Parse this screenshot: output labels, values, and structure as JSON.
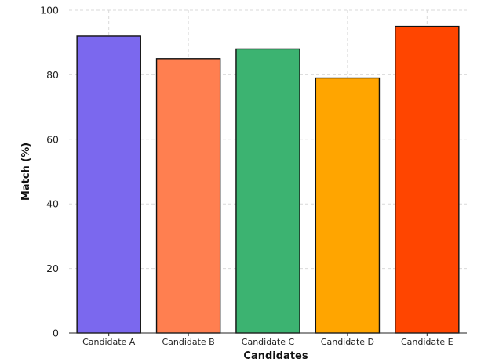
{
  "chart_data": {
    "type": "bar",
    "title": "",
    "xlabel": "Candidates",
    "ylabel": "Match (%)",
    "categories": [
      "Candidate A",
      "Candidate B",
      "Candidate C",
      "Candidate D",
      "Candidate E"
    ],
    "values": [
      92,
      85,
      88,
      79,
      95
    ],
    "colors": [
      "#7b68ee",
      "#ff7f50",
      "#3cb371",
      "#ffa500",
      "#ff4500"
    ],
    "edge_color": "#111111",
    "ylim": [
      0,
      100
    ],
    "yticks": [
      0,
      20,
      40,
      60,
      80,
      100
    ],
    "grid": true,
    "grid_style": "dashed",
    "legend": "none"
  }
}
